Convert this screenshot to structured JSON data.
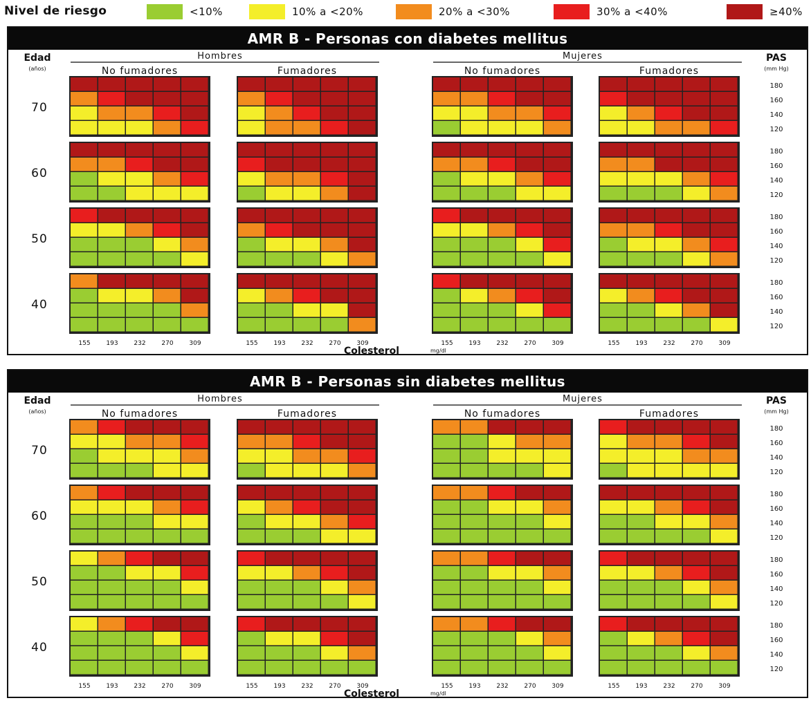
{
  "legend": {
    "title": "Nivel de riesgo",
    "items": [
      {
        "label": "<10%",
        "color": "#9acd32"
      },
      {
        "label": "10% a <20%",
        "color": "#f4ee2a"
      },
      {
        "label": "20% a <30%",
        "color": "#f28c1e"
      },
      {
        "label": "30% a <40%",
        "color": "#e81e1e"
      },
      {
        "label": "≥40%",
        "color": "#b01818"
      }
    ]
  },
  "labels": {
    "edad": "Edad",
    "edad_unit": "(años)",
    "pas": "PAS",
    "pas_unit": "(mm Hg)",
    "hombres": "Hombres",
    "mujeres": "Mujeres",
    "no_fumadores": "No fumadores",
    "fumadores": "Fumadores",
    "colesterol": "Colesterol",
    "colesterol_unit": "mg/dl"
  },
  "chart_data": [
    {
      "type": "heatmap",
      "title": "AMR B - Personas con diabetes mellitus",
      "ages": [
        "70",
        "60",
        "50",
        "40"
      ],
      "sbp": [
        "180",
        "160",
        "140",
        "120"
      ],
      "cholesterol": [
        "155",
        "193",
        "232",
        "270",
        "309"
      ],
      "scale": "risk levels 0=<10%, 1=10% a <20%, 2=20% a <30%, 3=30% a <40%, 4=≥40%",
      "groups": [
        {
          "sex": "Hombres",
          "smoking": "No fumadores",
          "blocks": [
            [
              [
                4,
                4,
                4,
                4,
                4
              ],
              [
                2,
                3,
                4,
                4,
                4
              ],
              [
                1,
                2,
                2,
                3,
                4
              ],
              [
                1,
                1,
                1,
                2,
                3
              ]
            ],
            [
              [
                4,
                4,
                4,
                4,
                4
              ],
              [
                2,
                2,
                3,
                4,
                4
              ],
              [
                0,
                1,
                1,
                2,
                3
              ],
              [
                0,
                0,
                1,
                1,
                1
              ]
            ],
            [
              [
                3,
                4,
                4,
                4,
                4
              ],
              [
                1,
                1,
                2,
                3,
                4
              ],
              [
                0,
                0,
                0,
                1,
                2
              ],
              [
                0,
                0,
                0,
                0,
                1
              ]
            ],
            [
              [
                2,
                4,
                4,
                4,
                4
              ],
              [
                0,
                1,
                1,
                2,
                4
              ],
              [
                0,
                0,
                0,
                0,
                2
              ],
              [
                0,
                0,
                0,
                0,
                0
              ]
            ]
          ]
        },
        {
          "sex": "Hombres",
          "smoking": "Fumadores",
          "blocks": [
            [
              [
                4,
                4,
                4,
                4,
                4
              ],
              [
                2,
                3,
                4,
                4,
                4
              ],
              [
                1,
                2,
                3,
                4,
                4
              ],
              [
                1,
                2,
                2,
                3,
                4
              ]
            ],
            [
              [
                4,
                4,
                4,
                4,
                4
              ],
              [
                3,
                4,
                4,
                4,
                4
              ],
              [
                1,
                2,
                2,
                3,
                4
              ],
              [
                0,
                1,
                1,
                2,
                4
              ]
            ],
            [
              [
                4,
                4,
                4,
                4,
                4
              ],
              [
                2,
                3,
                4,
                4,
                4
              ],
              [
                0,
                1,
                1,
                2,
                4
              ],
              [
                0,
                0,
                0,
                1,
                2
              ]
            ],
            [
              [
                4,
                4,
                4,
                4,
                4
              ],
              [
                1,
                2,
                3,
                4,
                4
              ],
              [
                0,
                0,
                1,
                1,
                4
              ],
              [
                0,
                0,
                0,
                0,
                2
              ]
            ]
          ]
        },
        {
          "sex": "Mujeres",
          "smoking": "No fumadores",
          "blocks": [
            [
              [
                4,
                4,
                4,
                4,
                4
              ],
              [
                2,
                2,
                3,
                4,
                4
              ],
              [
                1,
                1,
                2,
                2,
                3
              ],
              [
                0,
                1,
                1,
                1,
                2
              ]
            ],
            [
              [
                4,
                4,
                4,
                4,
                4
              ],
              [
                2,
                2,
                3,
                4,
                4
              ],
              [
                0,
                1,
                1,
                2,
                3
              ],
              [
                0,
                0,
                0,
                1,
                1
              ]
            ],
            [
              [
                3,
                4,
                4,
                4,
                4
              ],
              [
                1,
                1,
                2,
                3,
                4
              ],
              [
                0,
                0,
                0,
                1,
                3
              ],
              [
                0,
                0,
                0,
                0,
                1
              ]
            ],
            [
              [
                3,
                4,
                4,
                4,
                4
              ],
              [
                0,
                1,
                2,
                3,
                4
              ],
              [
                0,
                0,
                0,
                1,
                3
              ],
              [
                0,
                0,
                0,
                0,
                0
              ]
            ]
          ]
        },
        {
          "sex": "Mujeres",
          "smoking": "Fumadores",
          "blocks": [
            [
              [
                4,
                4,
                4,
                4,
                4
              ],
              [
                3,
                4,
                4,
                4,
                4
              ],
              [
                1,
                2,
                3,
                4,
                4
              ],
              [
                1,
                1,
                2,
                2,
                3
              ]
            ],
            [
              [
                4,
                4,
                4,
                4,
                4
              ],
              [
                2,
                2,
                4,
                4,
                4
              ],
              [
                1,
                1,
                1,
                2,
                3
              ],
              [
                0,
                0,
                0,
                1,
                2
              ]
            ],
            [
              [
                4,
                4,
                4,
                4,
                4
              ],
              [
                2,
                2,
                3,
                4,
                4
              ],
              [
                0,
                1,
                1,
                2,
                3
              ],
              [
                0,
                0,
                0,
                1,
                2
              ]
            ],
            [
              [
                4,
                4,
                4,
                4,
                4
              ],
              [
                1,
                2,
                3,
                4,
                4
              ],
              [
                0,
                0,
                1,
                2,
                4
              ],
              [
                0,
                0,
                0,
                0,
                1
              ]
            ]
          ]
        }
      ]
    },
    {
      "type": "heatmap",
      "title": "AMR B - Personas sin diabetes mellitus",
      "ages": [
        "70",
        "60",
        "50",
        "40"
      ],
      "sbp": [
        "180",
        "160",
        "140",
        "120"
      ],
      "cholesterol": [
        "155",
        "193",
        "232",
        "270",
        "309"
      ],
      "scale": "risk levels 0=<10%, 1=10% a <20%, 2=20% a <30%, 3=30% a <40%, 4=≥40%",
      "groups": [
        {
          "sex": "Hombres",
          "smoking": "No fumadores",
          "blocks": [
            [
              [
                2,
                3,
                4,
                4,
                4
              ],
              [
                1,
                1,
                2,
                2,
                3
              ],
              [
                0,
                1,
                1,
                1,
                2
              ],
              [
                0,
                0,
                0,
                1,
                1
              ]
            ],
            [
              [
                2,
                3,
                4,
                4,
                4
              ],
              [
                1,
                1,
                1,
                2,
                3
              ],
              [
                0,
                0,
                0,
                1,
                1
              ],
              [
                0,
                0,
                0,
                0,
                0
              ]
            ],
            [
              [
                1,
                2,
                3,
                4,
                4
              ],
              [
                0,
                0,
                1,
                1,
                3
              ],
              [
                0,
                0,
                0,
                0,
                1
              ],
              [
                0,
                0,
                0,
                0,
                0
              ]
            ],
            [
              [
                1,
                2,
                3,
                4,
                4
              ],
              [
                0,
                0,
                0,
                1,
                3
              ],
              [
                0,
                0,
                0,
                0,
                1
              ],
              [
                0,
                0,
                0,
                0,
                0
              ]
            ]
          ]
        },
        {
          "sex": "Hombres",
          "smoking": "Fumadores",
          "blocks": [
            [
              [
                4,
                4,
                4,
                4,
                4
              ],
              [
                2,
                2,
                3,
                4,
                4
              ],
              [
                1,
                1,
                2,
                2,
                3
              ],
              [
                0,
                1,
                1,
                1,
                2
              ]
            ],
            [
              [
                4,
                4,
                4,
                4,
                4
              ],
              [
                1,
                2,
                3,
                4,
                4
              ],
              [
                0,
                1,
                1,
                2,
                3
              ],
              [
                0,
                0,
                0,
                1,
                1
              ]
            ],
            [
              [
                3,
                4,
                4,
                4,
                4
              ],
              [
                1,
                1,
                2,
                3,
                4
              ],
              [
                0,
                0,
                0,
                1,
                2
              ],
              [
                0,
                0,
                0,
                0,
                1
              ]
            ],
            [
              [
                3,
                4,
                4,
                4,
                4
              ],
              [
                0,
                1,
                1,
                3,
                4
              ],
              [
                0,
                0,
                0,
                1,
                2
              ],
              [
                0,
                0,
                0,
                0,
                0
              ]
            ]
          ]
        },
        {
          "sex": "Mujeres",
          "smoking": "No fumadores",
          "blocks": [
            [
              [
                2,
                2,
                4,
                4,
                4
              ],
              [
                0,
                0,
                1,
                2,
                2
              ],
              [
                0,
                0,
                1,
                1,
                1
              ],
              [
                0,
                0,
                0,
                0,
                1
              ]
            ],
            [
              [
                2,
                2,
                3,
                4,
                4
              ],
              [
                0,
                0,
                1,
                1,
                2
              ],
              [
                0,
                0,
                0,
                0,
                1
              ],
              [
                0,
                0,
                0,
                0,
                0
              ]
            ],
            [
              [
                2,
                2,
                3,
                4,
                4
              ],
              [
                0,
                0,
                1,
                1,
                2
              ],
              [
                0,
                0,
                0,
                0,
                1
              ],
              [
                0,
                0,
                0,
                0,
                0
              ]
            ],
            [
              [
                2,
                2,
                3,
                4,
                4
              ],
              [
                0,
                0,
                0,
                1,
                2
              ],
              [
                0,
                0,
                0,
                0,
                1
              ],
              [
                0,
                0,
                0,
                0,
                0
              ]
            ]
          ]
        },
        {
          "sex": "Mujeres",
          "smoking": "Fumadores",
          "blocks": [
            [
              [
                3,
                4,
                4,
                4,
                4
              ],
              [
                1,
                2,
                2,
                3,
                4
              ],
              [
                1,
                1,
                1,
                2,
                2
              ],
              [
                0,
                1,
                1,
                1,
                1
              ]
            ],
            [
              [
                4,
                4,
                4,
                4,
                4
              ],
              [
                1,
                1,
                2,
                3,
                4
              ],
              [
                0,
                0,
                1,
                1,
                2
              ],
              [
                0,
                0,
                0,
                0,
                1
              ]
            ],
            [
              [
                3,
                4,
                4,
                4,
                4
              ],
              [
                1,
                1,
                2,
                3,
                4
              ],
              [
                0,
                0,
                0,
                1,
                2
              ],
              [
                0,
                0,
                0,
                0,
                1
              ]
            ],
            [
              [
                3,
                4,
                4,
                4,
                4
              ],
              [
                0,
                1,
                2,
                3,
                4
              ],
              [
                0,
                0,
                0,
                1,
                2
              ],
              [
                0,
                0,
                0,
                0,
                0
              ]
            ]
          ]
        }
      ]
    }
  ]
}
